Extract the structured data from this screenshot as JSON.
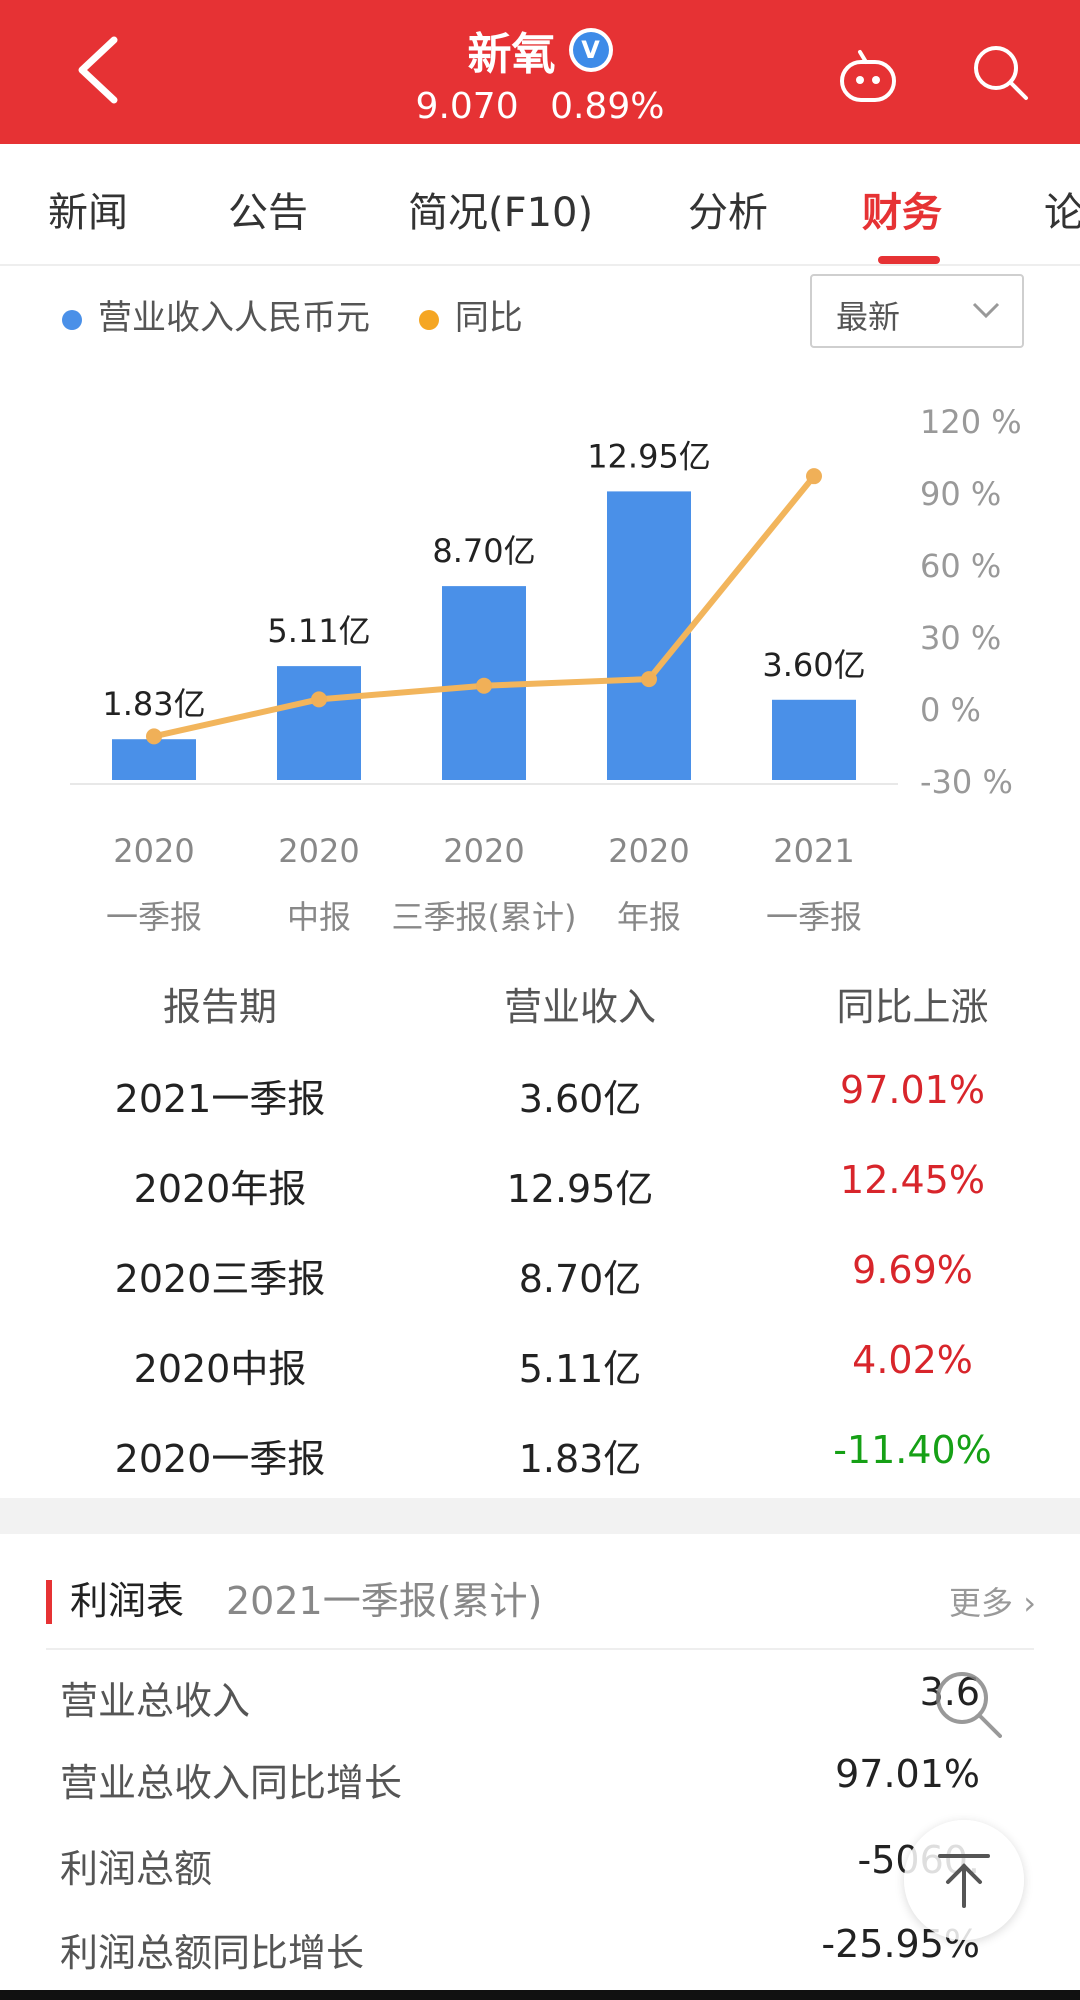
{
  "header": {
    "stock_name": "新氧",
    "verified_badge": "V",
    "price": "9.070",
    "change_pct": "0.89%"
  },
  "tabs": [
    {
      "label": "新闻"
    },
    {
      "label": "公告"
    },
    {
      "label": "简况(F10)"
    },
    {
      "label": "分析"
    },
    {
      "label": "财务",
      "active": true
    },
    {
      "label": "论"
    }
  ],
  "legend": {
    "revenue": "营业收入人民币元",
    "yoy": "同比"
  },
  "dropdown": {
    "value": "最新"
  },
  "chart_data": {
    "type": "bar",
    "categories": [
      "2020 一季报",
      "2020 中报",
      "2020 三季报(累计)",
      "2020 年报",
      "2021 一季报"
    ],
    "category_lines": [
      [
        "2020",
        "一季报"
      ],
      [
        "2020",
        "中报"
      ],
      [
        "2020",
        "三季报(累计)"
      ],
      [
        "2020",
        "年报"
      ],
      [
        "2021",
        "一季报"
      ]
    ],
    "series": [
      {
        "name": "营业收入人民币元",
        "type": "bar",
        "values": [
          1.83,
          5.11,
          8.7,
          12.95,
          3.6
        ],
        "labels": [
          "1.83亿",
          "5.11亿",
          "8.70亿",
          "12.95亿",
          "3.60亿"
        ],
        "color": "#4a90e8"
      },
      {
        "name": "同比",
        "type": "line",
        "axis": "right",
        "values": [
          -11.4,
          4.02,
          9.69,
          12.45,
          97.01
        ],
        "color": "#f2b55c"
      }
    ],
    "y_right_ticks": [
      "120 %",
      "90 %",
      "60 %",
      "30 %",
      "0 %",
      "-30 %"
    ],
    "y_right_lim": [
      -30,
      120
    ],
    "ylim": [
      0,
      14
    ]
  },
  "table": {
    "headers": [
      "报告期",
      "营业收入",
      "同比上涨"
    ],
    "rows": [
      {
        "period": "2021一季报",
        "revenue": "3.60亿",
        "yoy": "97.01%",
        "direction": "up"
      },
      {
        "period": "2020年报",
        "revenue": "12.95亿",
        "yoy": "12.45%",
        "direction": "up"
      },
      {
        "period": "2020三季报",
        "revenue": "8.70亿",
        "yoy": "9.69%",
        "direction": "up"
      },
      {
        "period": "2020中报",
        "revenue": "5.11亿",
        "yoy": "4.02%",
        "direction": "up"
      },
      {
        "period": "2020一季报",
        "revenue": "1.83亿",
        "yoy": "-11.40%",
        "direction": "down"
      }
    ]
  },
  "profit": {
    "title": "利润表",
    "period": "2021一季报(累计)",
    "more": "更多",
    "rows": [
      {
        "label": "营业总收入",
        "value": "3.6"
      },
      {
        "label": "营业总收入同比增长",
        "value": "97.01%"
      },
      {
        "label": "利润总额",
        "value": "-5060."
      },
      {
        "label": "利润总额同比增长",
        "value": "-25.95%"
      }
    ]
  },
  "colors": {
    "brand_red": "#e63234",
    "bar_blue": "#4a90e8",
    "line_orange": "#f2b55c",
    "up_red": "#d8252b",
    "down_green": "#16a016"
  }
}
